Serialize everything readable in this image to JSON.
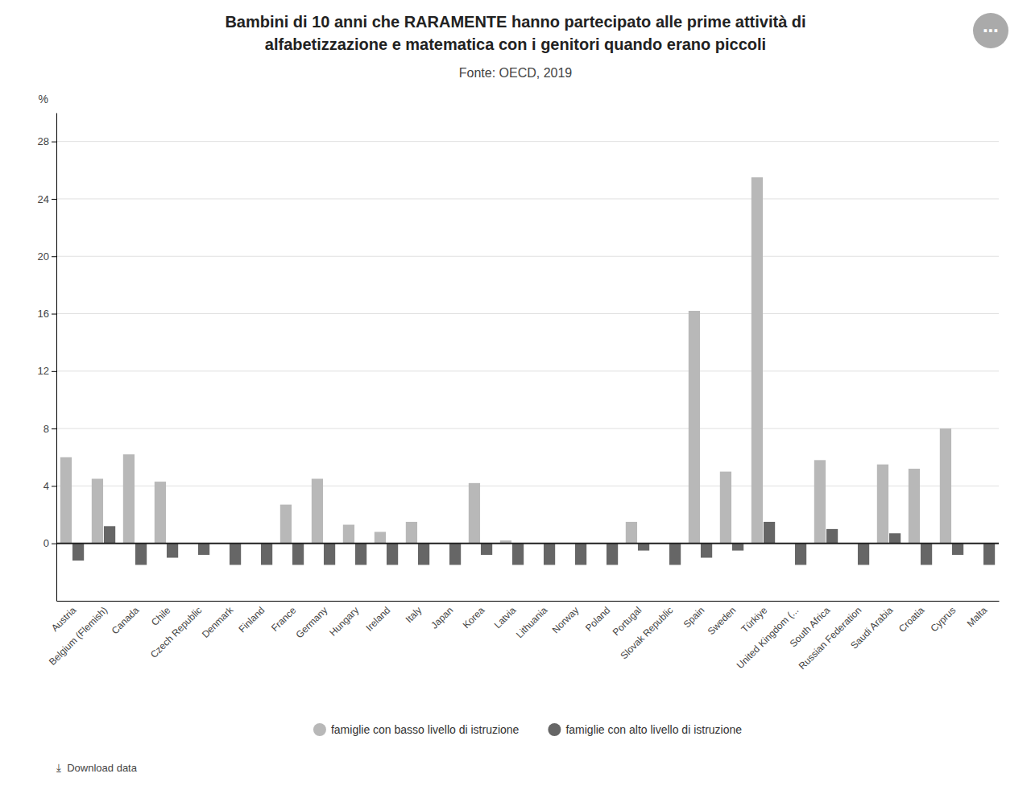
{
  "chart_data": {
    "type": "bar",
    "title": [
      "Bambini di 10 anni che RARAMENTE hanno partecipato alle prime attività di",
      "alfabetizzazione e matematica con i genitori quando erano piccoli"
    ],
    "subtitle": "Fonte: OECD, 2019",
    "y_label": "%",
    "annotations": [
      "⤓  Download data",
      "⋯"
    ],
    "categories": [
      "Austria",
      "Belgium (Flemish)",
      "Canada",
      "Chile",
      "Czech Republic",
      "Denmark",
      "Finland",
      "France",
      "Germany",
      "Hungary",
      "Ireland",
      "Italy",
      "Japan",
      "Korea",
      "Latvia",
      "Lithuania",
      "Norway",
      "Poland",
      "Portugal",
      "Slovak Republic",
      "Spain",
      "Sweden",
      "Türkiye",
      "United Kingdom (...",
      "South Africa",
      "Russian Federation",
      "Saudi Arabia",
      "Croatia",
      "Cyprus",
      "Malta"
    ],
    "series": [
      {
        "name": "famiglie con basso livello di istruzione",
        "color": "#b8b8b8",
        "values": [
          6.0,
          4.5,
          6.2,
          4.3,
          0.0,
          0.0,
          0.0,
          2.7,
          4.5,
          1.3,
          0.8,
          1.5,
          0.0,
          4.2,
          0.2,
          0.0,
          0.0,
          0.0,
          1.5,
          0.0,
          16.2,
          5.0,
          25.5,
          0.0,
          5.8,
          0.0,
          5.5,
          5.2,
          8.0,
          0.0
        ]
      },
      {
        "name": "famiglie con alto livello di istruzione",
        "color": "#666666",
        "values": [
          -1.2,
          1.2,
          -1.5,
          -1.0,
          -0.8,
          -1.5,
          -1.5,
          -1.5,
          -1.5,
          -1.5,
          -1.5,
          -1.5,
          -1.5,
          -0.8,
          -1.5,
          -1.5,
          -1.5,
          -1.5,
          -0.5,
          -1.5,
          -1.0,
          -0.5,
          1.5,
          -1.5,
          1.0,
          -1.5,
          0.7,
          -1.5,
          -0.8,
          -1.5
        ]
      }
    ],
    "ylim": [
      -4,
      30
    ],
    "yticks": [
      0,
      4,
      8,
      12,
      16,
      20,
      24,
      28
    ],
    "grid": true,
    "legend": "bottom"
  }
}
